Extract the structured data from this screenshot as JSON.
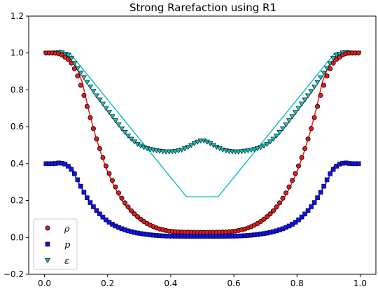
{
  "chart_data": {
    "type": "scatter",
    "title": "Strong Rarefaction using R1",
    "xlabel": "",
    "ylabel": "",
    "xlim": [
      -0.05,
      1.05
    ],
    "ylim": [
      -0.2,
      1.2
    ],
    "xticks": [
      0.0,
      0.2,
      0.4,
      0.6,
      0.8,
      1.0
    ],
    "yticks": [
      -0.2,
      0.0,
      0.2,
      0.4,
      0.6,
      0.8,
      1.0,
      1.2
    ],
    "xtick_labels": [
      "0.0",
      "0.2",
      "0.4",
      "0.6",
      "0.8",
      "1.0"
    ],
    "ytick_labels": [
      "−0.2",
      "0.0",
      "0.2",
      "0.4",
      "0.6",
      "0.8",
      "1.0",
      "1.2"
    ],
    "grid": false,
    "legend_position": "lower-left",
    "legend": [
      {
        "label": "ρ",
        "marker": "circle",
        "color": "#e8191b"
      },
      {
        "label": "p",
        "marker": "square",
        "color": "#1010e8"
      },
      {
        "label": "ε",
        "marker": "triangle-down",
        "color": "#12c0c0"
      }
    ],
    "exact_lines": [
      {
        "name": "ρ exact",
        "color": "#e8191b",
        "x": [
          0,
          0.04,
          0.06,
          0.08,
          0.1,
          0.12,
          0.14,
          0.16,
          0.18,
          0.2,
          0.22,
          0.24,
          0.26,
          0.28,
          0.3,
          0.32,
          0.34,
          0.36,
          0.38,
          0.4,
          0.42,
          0.44,
          0.45,
          0.5,
          0.55,
          0.56,
          0.58,
          0.6,
          0.62,
          0.64,
          0.66,
          0.68,
          0.7,
          0.72,
          0.74,
          0.76,
          0.78,
          0.8,
          0.82,
          0.84,
          0.86,
          0.88,
          0.9,
          0.92,
          0.94,
          0.96,
          1.0
        ],
        "y": [
          1.0,
          1.0,
          0.99,
          0.97,
          0.93,
          0.84,
          0.69,
          0.56,
          0.45,
          0.355,
          0.28,
          0.215,
          0.165,
          0.125,
          0.095,
          0.072,
          0.055,
          0.043,
          0.035,
          0.03,
          0.027,
          0.025,
          0.025,
          0.025,
          0.025,
          0.025,
          0.027,
          0.03,
          0.035,
          0.043,
          0.055,
          0.072,
          0.095,
          0.125,
          0.165,
          0.215,
          0.28,
          0.355,
          0.45,
          0.56,
          0.69,
          0.84,
          0.93,
          0.97,
          0.99,
          1.0,
          1.0
        ]
      },
      {
        "name": "p exact",
        "color": "#1010e8",
        "x": [
          0,
          0.04,
          0.06,
          0.08,
          0.09,
          0.1,
          0.12,
          0.14,
          0.16,
          0.18,
          0.2,
          0.22,
          0.24,
          0.26,
          0.28,
          0.3,
          0.32,
          0.34,
          0.36,
          0.38,
          0.4,
          0.45,
          0.5,
          0.55,
          0.6,
          0.62,
          0.64,
          0.66,
          0.68,
          0.7,
          0.72,
          0.74,
          0.76,
          0.78,
          0.8,
          0.82,
          0.84,
          0.86,
          0.88,
          0.9,
          0.91,
          0.92,
          0.94,
          0.96,
          1.0
        ],
        "y": [
          0.4,
          0.4,
          0.398,
          0.39,
          0.37,
          0.32,
          0.26,
          0.2,
          0.15,
          0.11,
          0.08,
          0.058,
          0.042,
          0.03,
          0.021,
          0.015,
          0.011,
          0.008,
          0.006,
          0.005,
          0.004,
          0.004,
          0.004,
          0.004,
          0.004,
          0.005,
          0.006,
          0.008,
          0.011,
          0.015,
          0.021,
          0.03,
          0.042,
          0.058,
          0.08,
          0.11,
          0.15,
          0.2,
          0.26,
          0.32,
          0.37,
          0.39,
          0.398,
          0.4,
          0.4
        ]
      },
      {
        "name": "ε exact",
        "color": "#12c0c0",
        "x": [
          0,
          0.08,
          0.45,
          0.55,
          0.92,
          1.0
        ],
        "y": [
          1.0,
          1.0,
          0.22,
          0.22,
          1.0,
          1.0
        ]
      }
    ],
    "series": [
      {
        "name": "ρ",
        "marker": "circle",
        "color": "#e8191b",
        "n": 100,
        "x": [
          0,
          0.03,
          0.05,
          0.08,
          0.1,
          0.12,
          0.14,
          0.16,
          0.18,
          0.2,
          0.22,
          0.24,
          0.26,
          0.28,
          0.3,
          0.32,
          0.34,
          0.36,
          0.38,
          0.4,
          0.42,
          0.45,
          0.5,
          0.55,
          0.58,
          0.6,
          0.62,
          0.64,
          0.66,
          0.68,
          0.7,
          0.72,
          0.74,
          0.76,
          0.78,
          0.8,
          0.82,
          0.84,
          0.86,
          0.88,
          0.9,
          0.92,
          0.95,
          0.97,
          1.0
        ],
        "y": [
          1.0,
          1.0,
          0.995,
          0.96,
          0.9,
          0.8,
          0.68,
          0.56,
          0.455,
          0.365,
          0.29,
          0.225,
          0.175,
          0.135,
          0.105,
          0.08,
          0.062,
          0.048,
          0.039,
          0.033,
          0.03,
          0.028,
          0.027,
          0.028,
          0.03,
          0.033,
          0.039,
          0.048,
          0.062,
          0.08,
          0.105,
          0.135,
          0.175,
          0.225,
          0.29,
          0.365,
          0.455,
          0.56,
          0.68,
          0.8,
          0.9,
          0.96,
          0.995,
          1.0,
          1.0
        ]
      },
      {
        "name": "p",
        "marker": "square",
        "color": "#1010e8",
        "n": 100,
        "x": [
          0,
          0.03,
          0.05,
          0.07,
          0.09,
          0.1,
          0.12,
          0.14,
          0.16,
          0.18,
          0.2,
          0.22,
          0.24,
          0.26,
          0.28,
          0.3,
          0.32,
          0.34,
          0.36,
          0.38,
          0.4,
          0.45,
          0.5,
          0.55,
          0.6,
          0.62,
          0.64,
          0.66,
          0.68,
          0.7,
          0.72,
          0.74,
          0.76,
          0.78,
          0.8,
          0.82,
          0.84,
          0.86,
          0.88,
          0.9,
          0.91,
          0.93,
          0.95,
          0.97,
          1.0
        ],
        "y": [
          0.4,
          0.4,
          0.405,
          0.395,
          0.36,
          0.33,
          0.26,
          0.2,
          0.155,
          0.118,
          0.088,
          0.066,
          0.05,
          0.038,
          0.029,
          0.022,
          0.017,
          0.013,
          0.01,
          0.008,
          0.007,
          0.006,
          0.006,
          0.006,
          0.007,
          0.008,
          0.01,
          0.013,
          0.017,
          0.022,
          0.029,
          0.038,
          0.05,
          0.066,
          0.088,
          0.118,
          0.155,
          0.2,
          0.26,
          0.33,
          0.36,
          0.395,
          0.405,
          0.4,
          0.4
        ]
      },
      {
        "name": "ε",
        "marker": "triangle-down",
        "color": "#12c0c0",
        "n": 100,
        "x": [
          0,
          0.03,
          0.05,
          0.08,
          0.1,
          0.12,
          0.14,
          0.16,
          0.18,
          0.2,
          0.22,
          0.24,
          0.26,
          0.28,
          0.3,
          0.32,
          0.34,
          0.36,
          0.38,
          0.4,
          0.42,
          0.44,
          0.46,
          0.48,
          0.5,
          0.52,
          0.54,
          0.56,
          0.58,
          0.6,
          0.62,
          0.64,
          0.66,
          0.68,
          0.7,
          0.72,
          0.74,
          0.76,
          0.78,
          0.8,
          0.82,
          0.84,
          0.86,
          0.88,
          0.9,
          0.92,
          0.95,
          0.97,
          1.0
        ],
        "y": [
          1.0,
          1.0,
          1.005,
          0.985,
          0.93,
          0.88,
          0.83,
          0.78,
          0.735,
          0.69,
          0.645,
          0.6,
          0.56,
          0.525,
          0.5,
          0.485,
          0.475,
          0.47,
          0.465,
          0.465,
          0.468,
          0.478,
          0.495,
          0.515,
          0.528,
          0.515,
          0.495,
          0.478,
          0.468,
          0.465,
          0.465,
          0.47,
          0.475,
          0.485,
          0.5,
          0.525,
          0.56,
          0.6,
          0.645,
          0.69,
          0.735,
          0.78,
          0.83,
          0.88,
          0.93,
          0.985,
          1.005,
          1.0,
          1.0
        ]
      }
    ]
  }
}
